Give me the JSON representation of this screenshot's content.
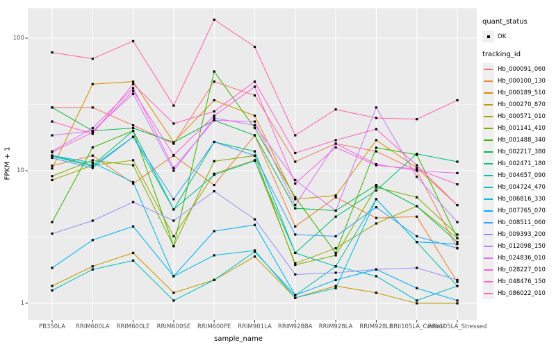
{
  "figure": {
    "x_axis_title": "sample_name",
    "y_axis_title": "FPKM + 1"
  },
  "legend": {
    "quant_status_title": "quant_status",
    "quant_status_items": [
      {
        "label": "OK",
        "marker": "black-point"
      }
    ],
    "tracking_id_title": "tracking_id",
    "position": "right"
  },
  "chart_data": {
    "type": "line",
    "xlabel": "sample_name",
    "ylabel": "FPKM + 1",
    "y_scale": "log10",
    "y_ticks": [
      1,
      10,
      100
    ],
    "y_minor_ticks": [
      3.162,
      31.62
    ],
    "ylim": [
      0.75,
      168
    ],
    "grid": true,
    "legend_position": "right",
    "panel_bg": "#ebebeb",
    "grid_color": "#ffffff",
    "point_color": "#000000",
    "tick_text_color": "#4d4d4d",
    "categories": [
      "PB350LA",
      "RRIM600LA",
      "RRIM600LE",
      "RRIM600SE",
      "RRIM600PE",
      "RRIM901LA",
      "RRIM928BA",
      "RRIM928LA",
      "RRIM928LE",
      "RRII105LA_Control",
      "RRII105LA_Stressed"
    ],
    "series": [
      {
        "name": "Hb_000091_060",
        "color": "#F8766D",
        "values": [
          30,
          30,
          22,
          16,
          47,
          37,
          11.7,
          16,
          14,
          10,
          2.6
        ]
      },
      {
        "name": "Hb_000100_130",
        "color": "#EA8331",
        "values": [
          10.9,
          13,
          8,
          13,
          7.8,
          18.5,
          3.8,
          6.3,
          4.4,
          4.5,
          1.45
        ]
      },
      {
        "name": "Hb_000189_510",
        "color": "#D89000",
        "values": [
          10.4,
          45,
          47,
          16.4,
          34,
          26,
          6.1,
          6.5,
          17,
          10.5,
          5.5
        ]
      },
      {
        "name": "Hb_000270_870",
        "color": "#C09B00",
        "values": [
          1.35,
          1.9,
          2.4,
          1.2,
          1.5,
          2.25,
          1.1,
          1.35,
          1.2,
          1.0,
          1.0
        ]
      },
      {
        "name": "Hb_000571_010",
        "color": "#A3A500",
        "values": [
          8.5,
          11,
          12,
          3.2,
          9.5,
          12,
          2.0,
          2.6,
          4.0,
          5.4,
          3.1
        ]
      },
      {
        "name": "Hb_001141_410",
        "color": "#7CAE00",
        "values": [
          9.1,
          12,
          11,
          2.7,
          11.8,
          13,
          1.95,
          2.3,
          7.5,
          6.3,
          3.3
        ]
      },
      {
        "name": "Hb_001488_340",
        "color": "#39B600",
        "values": [
          4.1,
          15,
          20,
          2.7,
          56,
          21,
          6.3,
          2.4,
          14.9,
          13.2,
          3.1
        ]
      },
      {
        "name": "Hb_002217_380",
        "color": "#00BB4E",
        "values": [
          30,
          20,
          21,
          16.4,
          24,
          18.5,
          5.2,
          5.0,
          7.8,
          5.4,
          2.9
        ]
      },
      {
        "name": "Hb_002471_180",
        "color": "#00BF7D",
        "values": [
          13,
          11,
          20,
          5.1,
          16.5,
          14,
          2.4,
          4.5,
          7.1,
          13.4,
          11.7
        ]
      },
      {
        "name": "Hb_004657_090",
        "color": "#00C1A7",
        "values": [
          12.9,
          10.8,
          18,
          5.1,
          9.3,
          11.9,
          2.4,
          1.9,
          6.1,
          2.9,
          1.35
        ]
      },
      {
        "name": "Hb_004724_470",
        "color": "#00BFC4",
        "values": [
          1.25,
          1.8,
          2.1,
          1.05,
          1.5,
          2.45,
          1.15,
          1.9,
          1.6,
          1.05,
          1.35
        ]
      },
      {
        "name": "Hb_006816_330",
        "color": "#00BAE0",
        "values": [
          13,
          11.5,
          8.2,
          1.6,
          2.3,
          2.5,
          1.1,
          1.3,
          6.1,
          2.9,
          2.8
        ]
      },
      {
        "name": "Hb_007765_070",
        "color": "#00B0F6",
        "values": [
          1.85,
          3.0,
          3.8,
          1.6,
          3.5,
          3.9,
          1.15,
          1.5,
          1.8,
          1.3,
          1.05
        ]
      },
      {
        "name": "Hb_008511_060",
        "color": "#35A2FF",
        "values": [
          12.5,
          10.5,
          18,
          6.1,
          16.5,
          13,
          3.3,
          3.2,
          5.3,
          3.2,
          2.6
        ]
      },
      {
        "name": "Hb_009393_200",
        "color": "#9590FF",
        "values": [
          3.35,
          4.2,
          5.8,
          4.2,
          7.0,
          4.3,
          1.65,
          1.7,
          1.8,
          1.85,
          1.5
        ]
      },
      {
        "name": "Hb_012098_150",
        "color": "#C77CFF",
        "values": [
          18.5,
          20,
          38,
          10,
          25,
          22,
          8.5,
          5.0,
          30,
          9.0,
          4.1
        ]
      },
      {
        "name": "Hb_024836_010",
        "color": "#E76BF3",
        "values": [
          14,
          21,
          42,
          10.5,
          24,
          23.5,
          5.5,
          16,
          11.2,
          10,
          9.6
        ]
      },
      {
        "name": "Hb_028227_010",
        "color": "#FA62DB",
        "values": [
          13.8,
          19.5,
          40,
          13.1,
          26,
          43,
          8.0,
          15,
          11,
          10.3,
          7.9
        ]
      },
      {
        "name": "Hb_048476_150",
        "color": "#FF61C9",
        "values": [
          23.5,
          19,
          45,
          22.7,
          28,
          47,
          13.6,
          17,
          20.6,
          11,
          5.5
        ]
      },
      {
        "name": "Hb_086022_010",
        "color": "#FF67A4",
        "values": [
          78,
          70,
          95,
          31,
          138,
          86,
          18.5,
          29,
          25,
          24.5,
          34
        ]
      }
    ]
  }
}
